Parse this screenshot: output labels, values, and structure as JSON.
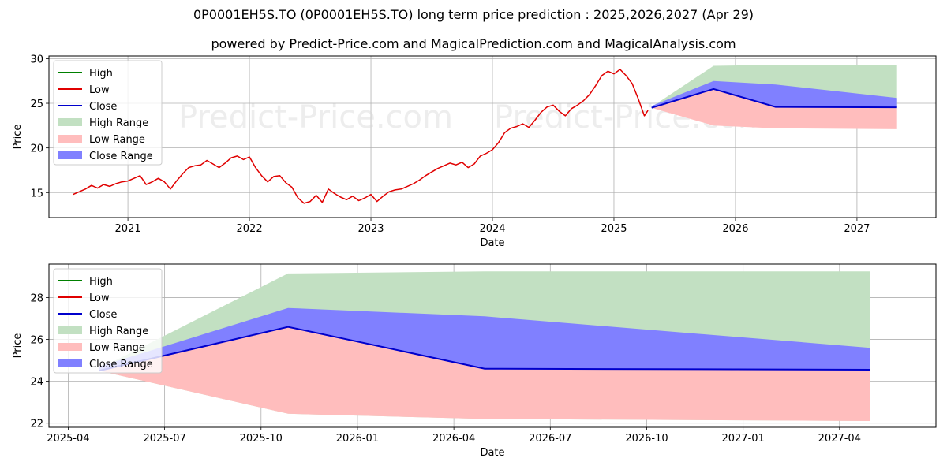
{
  "title": "0P0001EH5S.TO (0P0001EH5S.TO) long term price prediction : 2025,2026,2027 (Apr 29)",
  "subtitle": "powered by Predict-Price.com and MagicalPrediction.com and MagicalAnalysis.com",
  "watermark": "Predict-Price.com",
  "colors": {
    "high": "#008000",
    "low": "#e00000",
    "close": "#0000cc",
    "high_range": "#c2e0c2",
    "low_range": "#ffbdbd",
    "close_range": "#8080ff",
    "grid": "#b0b0b0"
  },
  "chart_data": [
    {
      "type": "line",
      "xlabel": "Date",
      "ylabel": "Price",
      "xlim": [
        2020.35,
        2027.65
      ],
      "ylim": [
        12.2,
        30.3
      ],
      "xticks": [
        "2021",
        "2022",
        "2023",
        "2024",
        "2025",
        "2026",
        "2027"
      ],
      "yticks": [
        15,
        20,
        25,
        30
      ],
      "legend": [
        "High",
        "Low",
        "Close",
        "High Range",
        "Low Range",
        "Close Range"
      ],
      "legend_position": "top-left",
      "grid": true,
      "history": {
        "name": "Low",
        "x": [
          2020.55,
          2020.6,
          2020.65,
          2020.7,
          2020.75,
          2020.8,
          2020.85,
          2020.9,
          2020.95,
          2021.0,
          2021.05,
          2021.1,
          2021.15,
          2021.2,
          2021.25,
          2021.3,
          2021.35,
          2021.4,
          2021.45,
          2021.5,
          2021.55,
          2021.6,
          2021.65,
          2021.7,
          2021.75,
          2021.8,
          2021.85,
          2021.9,
          2021.95,
          2022.0,
          2022.05,
          2022.1,
          2022.15,
          2022.2,
          2022.25,
          2022.3,
          2022.35,
          2022.4,
          2022.45,
          2022.5,
          2022.55,
          2022.6,
          2022.65,
          2022.7,
          2022.75,
          2022.8,
          2022.85,
          2022.9,
          2022.95,
          2023.0,
          2023.05,
          2023.1,
          2023.15,
          2023.2,
          2023.25,
          2023.3,
          2023.35,
          2023.4,
          2023.45,
          2023.5,
          2023.55,
          2023.6,
          2023.65,
          2023.7,
          2023.75,
          2023.8,
          2023.85,
          2023.9,
          2023.95,
          2024.0,
          2024.05,
          2024.1,
          2024.15,
          2024.2,
          2024.25,
          2024.3,
          2024.35,
          2024.4,
          2024.45,
          2024.5,
          2024.55,
          2024.6,
          2024.65,
          2024.7,
          2024.75,
          2024.8,
          2024.85,
          2024.9,
          2024.95,
          2025.0,
          2025.05,
          2025.1,
          2025.15,
          2025.2,
          2025.25,
          2025.28
        ],
        "y": [
          14.8,
          15.1,
          15.4,
          15.8,
          15.5,
          15.9,
          15.7,
          16.0,
          16.2,
          16.3,
          16.6,
          16.9,
          15.9,
          16.2,
          16.6,
          16.2,
          15.4,
          16.3,
          17.1,
          17.8,
          18.0,
          18.1,
          18.6,
          18.2,
          17.8,
          18.3,
          18.9,
          19.1,
          18.7,
          19.0,
          17.8,
          16.9,
          16.2,
          16.8,
          16.9,
          16.1,
          15.6,
          14.4,
          13.8,
          14.0,
          14.7,
          13.9,
          15.4,
          14.9,
          14.5,
          14.2,
          14.6,
          14.1,
          14.4,
          14.8,
          14.0,
          14.6,
          15.1,
          15.3,
          15.4,
          15.7,
          16.0,
          16.4,
          16.9,
          17.3,
          17.7,
          18.0,
          18.3,
          18.1,
          18.4,
          17.8,
          18.2,
          19.1,
          19.4,
          19.8,
          20.6,
          21.7,
          22.2,
          22.4,
          22.7,
          22.3,
          23.1,
          24.0,
          24.6,
          24.8,
          24.1,
          23.6,
          24.4,
          24.8,
          25.3,
          26.0,
          27.0,
          28.1,
          28.6,
          28.3,
          28.8,
          28.1,
          27.2,
          25.5,
          23.6,
          24.2
        ]
      },
      "forecast": {
        "x": [
          2025.31,
          2025.82,
          2026.33,
          2027.33
        ],
        "high": [
          24.6,
          29.2,
          29.3,
          29.3
        ],
        "high_range_low": [
          24.6,
          26.6,
          24.6,
          24.5
        ],
        "low_range_low": [
          24.5,
          22.5,
          22.2,
          22.1
        ],
        "close_range_high": [
          24.7,
          27.5,
          27.1,
          25.6
        ],
        "close": [
          24.5,
          26.6,
          24.6,
          24.55
        ]
      }
    },
    {
      "type": "area",
      "xlabel": "Date",
      "ylabel": "Price",
      "xlim": [
        2025.2,
        2027.5
      ],
      "ylim": [
        21.8,
        29.6
      ],
      "xticks": [
        "2025-04",
        "2025-07",
        "2025-10",
        "2026-01",
        "2026-04",
        "2026-07",
        "2026-10",
        "2027-01",
        "2027-04"
      ],
      "yticks": [
        22,
        24,
        26,
        28
      ],
      "legend": [
        "High",
        "Low",
        "Close",
        "High Range",
        "Low Range",
        "Close Range"
      ],
      "legend_position": "top-left",
      "grid": true,
      "forecast": {
        "x": [
          2025.33,
          2025.82,
          2026.33,
          2027.33
        ],
        "high": [
          24.6,
          29.15,
          29.25,
          29.25
        ],
        "low": [
          24.5,
          22.45,
          22.2,
          22.1
        ],
        "close_range_high": [
          24.7,
          27.5,
          27.1,
          25.6
        ],
        "close": [
          24.5,
          26.6,
          24.6,
          24.55
        ]
      }
    }
  ]
}
